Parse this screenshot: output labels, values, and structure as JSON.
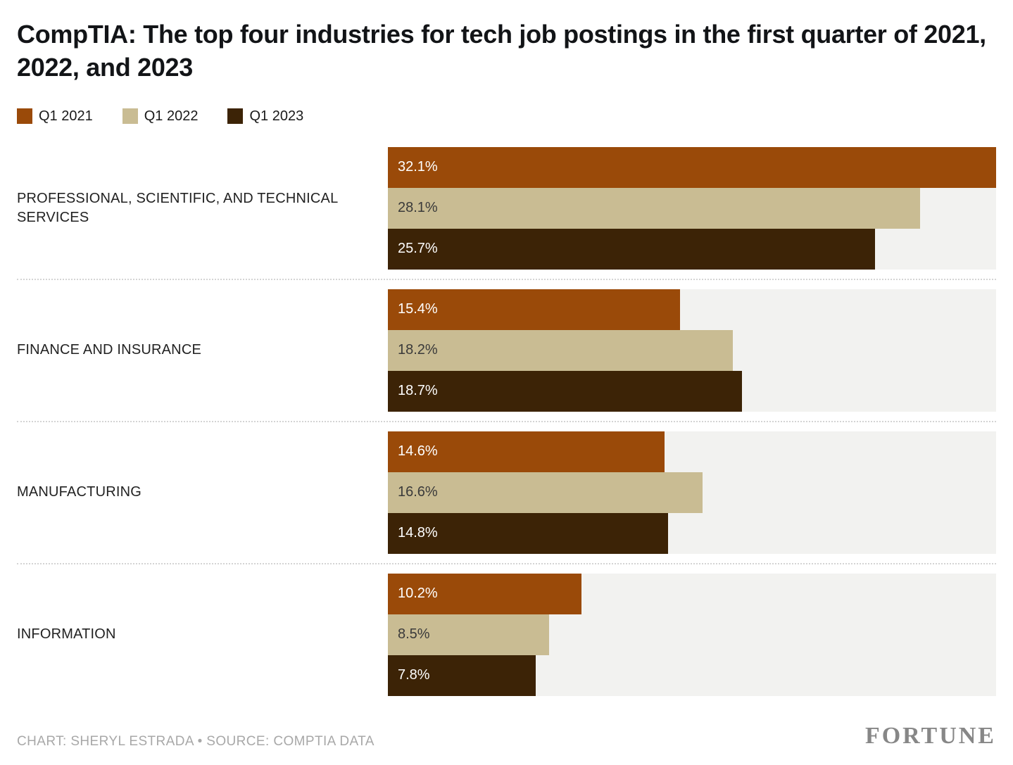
{
  "footer": {
    "credit": "CHART: SHERYL ESTRADA • SOURCE: COMPTIA DATA",
    "brand": "FORTUNE"
  },
  "chart_data": {
    "type": "bar",
    "orientation": "horizontal",
    "title": "CompTIA: The top four industries for tech job postings in the first quarter of 2021, 2022, and 2023",
    "categories": [
      "PROFESSIONAL, SCIENTIFIC, AND TECHNICAL SERVICES",
      "FINANCE AND INSURANCE",
      "MANUFACTURING",
      "INFORMATION"
    ],
    "series": [
      {
        "name": "Q1 2021",
        "color": "#9a4a09",
        "label_color": "#ffffff",
        "values": [
          32.1,
          15.4,
          14.6,
          10.2
        ]
      },
      {
        "name": "Q1 2022",
        "color": "#c9bc93",
        "label_color": "#3a3a3a",
        "values": [
          28.1,
          18.2,
          16.6,
          8.5
        ]
      },
      {
        "name": "Q1 2023",
        "color": "#3c2306",
        "label_color": "#ffffff",
        "values": [
          25.7,
          18.7,
          14.8,
          7.8
        ]
      }
    ],
    "value_suffix": "%",
    "xmax": 32.1,
    "plot_background": "#f2f2f0",
    "legend_position": "top-left",
    "grid": false
  }
}
